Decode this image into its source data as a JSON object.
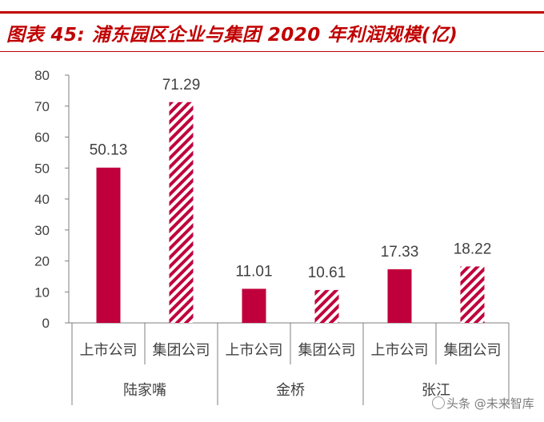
{
  "title": "图表 45: 浦东园区企业与集团 2020 年利润规模(亿)",
  "colors": {
    "accent": "#c00000",
    "bar": "#c0003c",
    "hatch_bg": "#ffffff",
    "axis": "#7f7f7f",
    "text": "#404040"
  },
  "watermark": "头条 @未来智库",
  "chart_data": {
    "type": "bar",
    "title": "浦东园区企业与集团 2020 年利润规模(亿)",
    "ylim": [
      0,
      80
    ],
    "yticks": [
      0,
      10,
      20,
      30,
      40,
      50,
      60,
      70,
      80
    ],
    "groups": [
      {
        "name": "陆家嘴",
        "bars": [
          {
            "label": "上市公司",
            "value": 50.13,
            "value_label": "50.13",
            "style": "solid"
          },
          {
            "label": "集团公司",
            "value": 71.29,
            "value_label": "71.29",
            "style": "hatched"
          }
        ]
      },
      {
        "name": "金桥",
        "bars": [
          {
            "label": "上市公司",
            "value": 11.01,
            "value_label": "11.01",
            "style": "solid"
          },
          {
            "label": "集团公司",
            "value": 10.61,
            "value_label": "10.61",
            "style": "hatched"
          }
        ]
      },
      {
        "name": "张江",
        "bars": [
          {
            "label": "上市公司",
            "value": 17.33,
            "value_label": "17.33",
            "style": "solid"
          },
          {
            "label": "集团公司",
            "value": 18.22,
            "value_label": "18.22",
            "style": "hatched"
          }
        ]
      }
    ]
  }
}
